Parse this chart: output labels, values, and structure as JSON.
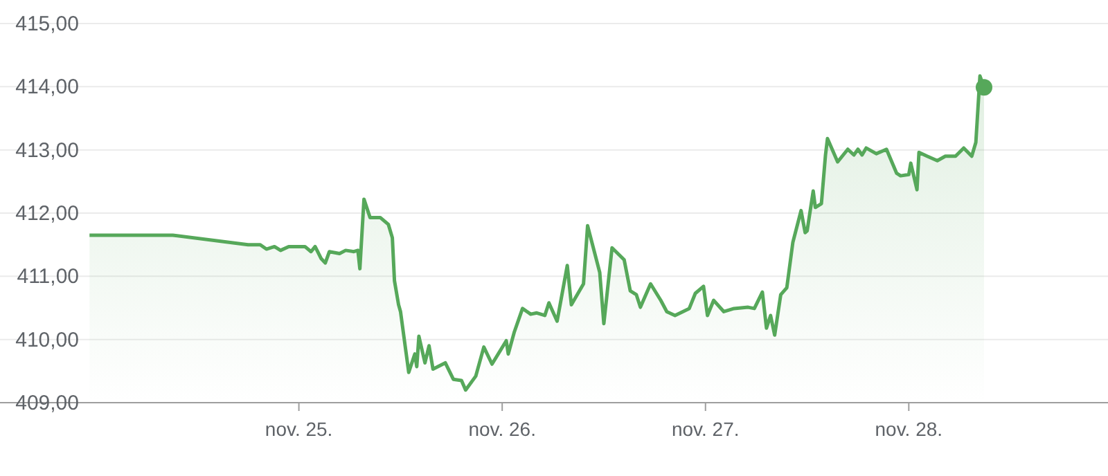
{
  "chart_data": {
    "type": "area",
    "x": [
      "--11-23T23:17",
      "--11-24T09:07",
      "--11-24T18:00",
      "--11-24T19:26",
      "--11-24T20:10",
      "--11-24T21:07",
      "--11-24T21:50",
      "--11-24T22:48",
      "--11-25T00:43",
      "--11-25T01:26",
      "--11-25T01:55",
      "--11-25T02:38",
      "--11-25T03:07",
      "--11-25T03:36",
      "--11-25T04:48",
      "--11-25T05:31",
      "--11-25T06:29",
      "--11-25T06:58",
      "--11-25T07:12",
      "--11-25T07:41",
      "--11-25T08:24",
      "--11-25T09:36",
      "--11-25T10:34",
      "--11-25T11:02",
      "--11-25T11:17",
      "--11-25T11:46",
      "--11-25T12:00",
      "--11-25T12:58",
      "--11-25T13:41",
      "--11-25T13:55",
      "--11-25T14:10",
      "--11-25T14:53",
      "--11-25T15:22",
      "--11-25T15:50",
      "--11-25T17:17",
      "--11-25T18:14",
      "--11-25T19:12",
      "--11-25T19:41",
      "--11-25T20:53",
      "--11-25T21:50",
      "--11-25T22:48",
      "--11-26T00:29",
      "--11-26T00:43",
      "--11-26T01:26",
      "--11-26T02:24",
      "--11-26T03:22",
      "--11-26T04:05",
      "--11-26T05:02",
      "--11-26T05:31",
      "--11-26T06:29",
      "--11-26T07:41",
      "--11-26T08:10",
      "--11-26T09:36",
      "--11-26T10:05",
      "--11-26T10:48",
      "--11-26T11:31",
      "--11-26T12:00",
      "--11-26T12:58",
      "--11-26T14:24",
      "--11-26T15:07",
      "--11-26T15:50",
      "--11-26T16:19",
      "--11-26T17:31",
      "--11-26T18:43",
      "--11-26T19:26",
      "--11-26T20:24",
      "--11-26T22:05",
      "--11-26T22:48",
      "--11-26T23:46",
      "--11-27T00:14",
      "--11-27T00:58",
      "--11-27T02:10",
      "--11-27T03:22",
      "--11-27T05:02",
      "--11-27T05:46",
      "--11-27T06:43",
      "--11-27T07:12",
      "--11-27T07:41",
      "--11-27T08:10",
      "--11-27T08:53",
      "--11-27T09:36",
      "--11-27T10:19",
      "--11-27T11:17",
      "--11-27T11:46",
      "--11-27T12:00",
      "--11-27T12:43",
      "--11-27T12:58",
      "--11-27T13:41",
      "--11-27T14:10",
      "--11-27T14:24",
      "--11-27T15:36",
      "--11-27T16:48",
      "--11-27T17:31",
      "--11-27T18:00",
      "--11-27T18:29",
      "--11-27T18:58",
      "--11-27T20:10",
      "--11-27T21:22",
      "--11-27T22:34",
      "--11-27T23:02",
      "--11-28T00:00",
      "--11-28T00:14",
      "--11-28T00:58",
      "--11-28T01:12",
      "--11-28T02:10",
      "--11-28T03:22",
      "--11-28T04:19",
      "--11-28T05:31",
      "--11-28T06:29",
      "--11-28T07:26",
      "--11-28T07:55",
      "--11-28T08:24",
      "--11-28T08:53"
    ],
    "series": [
      {
        "color": "#56a85a",
        "values": [
          411.65,
          411.65,
          411.5,
          411.5,
          411.43,
          411.47,
          411.41,
          411.47,
          411.47,
          411.39,
          411.47,
          411.28,
          411.21,
          411.39,
          411.36,
          411.41,
          411.39,
          411.41,
          411.12,
          412.22,
          411.93,
          411.93,
          411.82,
          411.61,
          410.93,
          410.55,
          410.44,
          409.48,
          409.77,
          409.57,
          410.05,
          409.63,
          409.9,
          409.53,
          409.63,
          409.37,
          409.35,
          409.2,
          409.42,
          409.88,
          409.61,
          409.98,
          409.77,
          410.12,
          410.49,
          410.4,
          410.42,
          410.38,
          410.58,
          410.29,
          411.17,
          410.55,
          410.88,
          411.8,
          411.43,
          411.06,
          410.25,
          411.45,
          411.26,
          410.77,
          410.71,
          410.51,
          410.88,
          410.62,
          410.44,
          410.38,
          410.49,
          410.73,
          410.84,
          410.38,
          410.62,
          410.44,
          410.49,
          410.51,
          410.49,
          410.75,
          410.18,
          410.38,
          410.07,
          410.71,
          410.82,
          411.54,
          412.04,
          411.69,
          411.72,
          412.35,
          412.09,
          412.15,
          412.92,
          413.18,
          412.81,
          413.01,
          412.92,
          413.01,
          412.92,
          413.03,
          412.94,
          413.01,
          412.63,
          412.59,
          412.61,
          412.79,
          412.37,
          412.96,
          412.9,
          412.83,
          412.9,
          412.9,
          413.03,
          412.9,
          413.12,
          414.17,
          413.99
        ]
      }
    ],
    "xlim": [
      "--11-23T12:43",
      "--11-28T23:31"
    ],
    "xticks": [
      {
        "value": "--11-25",
        "label": "nov. 25."
      },
      {
        "value": "--11-26",
        "label": "nov. 26."
      },
      {
        "value": "--11-27",
        "label": "nov. 27."
      },
      {
        "value": "--11-28",
        "label": "nov. 28."
      }
    ],
    "ylim": [
      409,
      415
    ],
    "yticks": [
      {
        "value": 409,
        "label": "409,00"
      },
      {
        "value": 410,
        "label": "410,00"
      },
      {
        "value": 411,
        "label": "411,00"
      },
      {
        "value": 412,
        "label": "412,00"
      },
      {
        "value": 413,
        "label": "413,00"
      },
      {
        "value": 414,
        "label": "414,00"
      },
      {
        "value": 415,
        "label": "415,00"
      }
    ],
    "grid": "y",
    "legend": false
  }
}
